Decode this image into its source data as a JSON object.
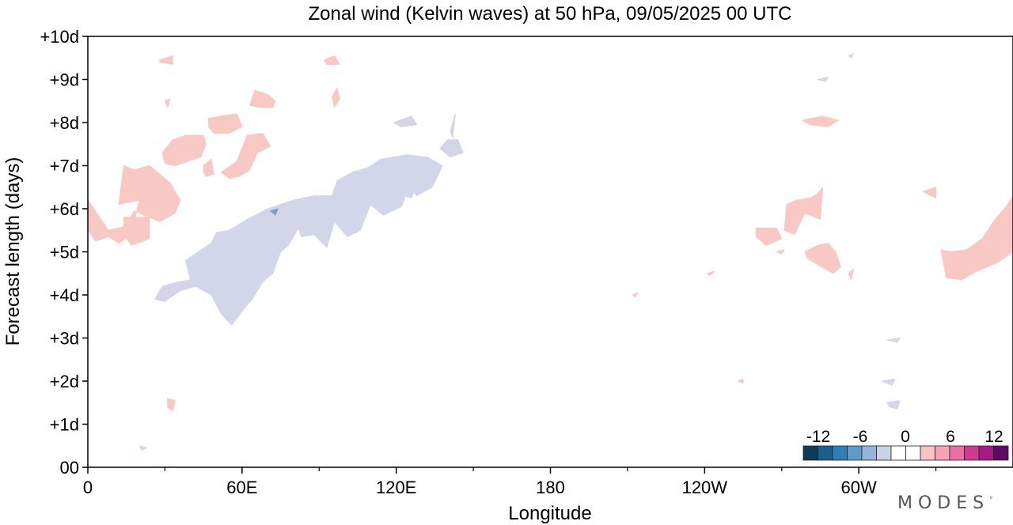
{
  "chart_data": {
    "type": "heatmap",
    "title": "Zonal wind (Kelvin waves) at 50 hPa,  09/05/2025  00 UTC",
    "xlabel": "Longitude",
    "ylabel": "Forecast length (days)",
    "x_axis": {
      "range": [
        0,
        360
      ],
      "tick_labels": [
        {
          "lon": 0,
          "label": "0"
        },
        {
          "lon": 60,
          "label": "60E"
        },
        {
          "lon": 120,
          "label": "120E"
        },
        {
          "lon": 180,
          "label": "180"
        },
        {
          "lon": 240,
          "label": "120W"
        },
        {
          "lon": 300,
          "label": "60W"
        }
      ],
      "minor_ticks": [
        30,
        90,
        150,
        210,
        270,
        330
      ]
    },
    "y_axis": {
      "range": [
        0,
        10
      ],
      "tick_labels": [
        {
          "day": 0,
          "label": "00"
        },
        {
          "day": 1,
          "label": "+1d"
        },
        {
          "day": 2,
          "label": "+2d"
        },
        {
          "day": 3,
          "label": "+3d"
        },
        {
          "day": 4,
          "label": "+4d"
        },
        {
          "day": 5,
          "label": "+5d"
        },
        {
          "day": 6,
          "label": "+6d"
        },
        {
          "day": 7,
          "label": "+7d"
        },
        {
          "day": 8,
          "label": "+8d"
        },
        {
          "day": 9,
          "label": "+9d"
        },
        {
          "day": 10,
          "label": "+10d"
        }
      ]
    },
    "colorbar": {
      "labels": [
        "-12",
        "-6",
        "0",
        "6",
        "12"
      ],
      "colors": [
        "#0f3d57",
        "#1b5f8c",
        "#2f7fb6",
        "#5c9bcb",
        "#98b4d8",
        "#cdd3e6",
        "#ffffff",
        "#ffffff",
        "#f8c3c0",
        "#f5a3b5",
        "#ea6fa3",
        "#d03b8f",
        "#a21a84",
        "#5c0a63"
      ]
    },
    "series": [
      {
        "value": 2,
        "color": "#f8c8c4",
        "regions": [
          [
            [
              0,
              5.5
            ],
            [
              3,
              5.25
            ],
            [
              8,
              5.35
            ],
            [
              12,
              5.2
            ],
            [
              17,
              5.4
            ],
            [
              20,
              6.2
            ],
            [
              12,
              6.1
            ],
            [
              14,
              7.0
            ],
            [
              18,
              6.9
            ],
            [
              24,
              7.0
            ],
            [
              28,
              6.8
            ],
            [
              32,
              6.6
            ],
            [
              36,
              6.2
            ],
            [
              34,
              5.9
            ],
            [
              28,
              5.7
            ],
            [
              22,
              5.85
            ],
            [
              18,
              5.95
            ],
            [
              15,
              5.6
            ],
            [
              12,
              5.55
            ],
            [
              8,
              5.5
            ],
            [
              0,
              6.2
            ]
          ],
          [
            [
              14,
              5.8
            ],
            [
              24,
              5.8
            ],
            [
              24,
              5.3
            ],
            [
              17,
              5.15
            ],
            [
              14,
              5.4
            ]
          ],
          [
            [
              29,
              7.3
            ],
            [
              33,
              7.6
            ],
            [
              38,
              7.7
            ],
            [
              45,
              7.7
            ],
            [
              46,
              7.5
            ],
            [
              44,
              7.2
            ],
            [
              39,
              7.1
            ],
            [
              34,
              7.0
            ],
            [
              30,
              7.05
            ]
          ],
          [
            [
              47,
              8.1
            ],
            [
              52,
              8.15
            ],
            [
              58,
              8.2
            ],
            [
              60,
              7.9
            ],
            [
              55,
              7.75
            ],
            [
              49,
              7.75
            ],
            [
              47,
              7.9
            ]
          ],
          [
            [
              45,
              7.0
            ],
            [
              48,
              7.15
            ],
            [
              49,
              6.8
            ],
            [
              46,
              6.75
            ],
            [
              45,
              6.85
            ]
          ],
          [
            [
              52,
              6.85
            ],
            [
              58,
              7.1
            ],
            [
              62,
              7.7
            ],
            [
              68,
              7.75
            ],
            [
              71,
              7.45
            ],
            [
              66,
              7.3
            ],
            [
              63,
              6.9
            ],
            [
              59,
              6.75
            ],
            [
              55,
              6.7
            ]
          ],
          [
            [
              63,
              8.4
            ],
            [
              65,
              8.75
            ],
            [
              70,
              8.65
            ],
            [
              73,
              8.5
            ],
            [
              72,
              8.35
            ],
            [
              67,
              8.35
            ]
          ],
          [
            [
              28,
              9.45
            ],
            [
              33,
              9.55
            ],
            [
              33,
              9.35
            ],
            [
              28,
              9.4
            ]
          ],
          [
            [
              92,
              9.45
            ],
            [
              96,
              9.55
            ],
            [
              98,
              9.35
            ],
            [
              93,
              9.35
            ]
          ],
          [
            [
              95,
              8.6
            ],
            [
              97,
              8.8
            ],
            [
              98,
              8.55
            ],
            [
              96,
              8.35
            ]
          ],
          [
            [
              30,
              8.5
            ],
            [
              32,
              8.55
            ],
            [
              31,
              8.35
            ]
          ],
          [
            [
              31,
              1.6
            ],
            [
              34,
              1.55
            ],
            [
              33,
              1.3
            ],
            [
              31,
              1.4
            ]
          ],
          [
            [
              20,
              0.5
            ],
            [
              23,
              0.45
            ],
            [
              21,
              0.4
            ]
          ],
          [
            [
              278,
              8.05
            ],
            [
              286,
              8.15
            ],
            [
              292,
              8.05
            ],
            [
              288,
              7.9
            ],
            [
              281,
              7.95
            ]
          ],
          [
            [
              271,
              5.5
            ],
            [
              272,
              6.1
            ],
            [
              276,
              6.2
            ],
            [
              281,
              6.25
            ],
            [
              284,
              6.35
            ],
            [
              286,
              6.5
            ],
            [
              285,
              5.75
            ],
            [
              279,
              5.9
            ],
            [
              275,
              5.4
            ]
          ],
          [
            [
              260,
              5.55
            ],
            [
              268,
              5.55
            ],
            [
              270,
              5.3
            ],
            [
              264,
              5.15
            ],
            [
              260,
              5.35
            ]
          ],
          [
            [
              279,
              5.0
            ],
            [
              284,
              5.15
            ],
            [
              288,
              5.2
            ],
            [
              291,
              5.0
            ],
            [
              293,
              4.65
            ],
            [
              290,
              4.5
            ],
            [
              284,
              4.7
            ],
            [
              280,
              4.85
            ]
          ],
          [
            [
              296,
              4.5
            ],
            [
              298,
              4.6
            ],
            [
              297,
              4.35
            ]
          ],
          [
            [
              325,
              6.4
            ],
            [
              330,
              6.5
            ],
            [
              330,
              6.25
            ]
          ],
          [
            [
              336,
              5.0
            ],
            [
              342,
              5.05
            ],
            [
              348,
              5.3
            ],
            [
              353,
              5.75
            ],
            [
              358,
              6.1
            ],
            [
              360,
              6.3
            ],
            [
              360,
              5.0
            ],
            [
              354,
              4.75
            ],
            [
              346,
              4.55
            ],
            [
              340,
              4.35
            ],
            [
              334,
              4.4
            ],
            [
              332,
              5.05
            ]
          ],
          [
            [
              212,
              4.0
            ],
            [
              214,
              4.05
            ],
            [
              213,
              3.95
            ]
          ],
          [
            [
              241,
              4.5
            ],
            [
              244,
              4.55
            ],
            [
              242,
              4.45
            ]
          ],
          [
            [
              253,
              2.0
            ],
            [
              255,
              2.05
            ],
            [
              255,
              1.95
            ]
          ],
          [
            [
              268,
              5.0
            ],
            [
              271,
              5.05
            ],
            [
              270,
              4.95
            ]
          ]
        ]
      },
      {
        "value": -2,
        "color": "#d3d6e8",
        "regions": [
          [
            [
              26,
              3.9
            ],
            [
              29,
              4.2
            ],
            [
              35,
              4.3
            ],
            [
              40,
              4.35
            ],
            [
              38,
              4.8
            ],
            [
              43,
              5.0
            ],
            [
              48,
              5.2
            ],
            [
              50,
              5.45
            ],
            [
              55,
              5.5
            ],
            [
              62,
              5.75
            ],
            [
              70,
              6.0
            ],
            [
              80,
              6.2
            ],
            [
              88,
              6.3
            ],
            [
              95,
              6.3
            ],
            [
              97,
              6.65
            ],
            [
              103,
              6.85
            ],
            [
              109,
              6.95
            ],
            [
              114,
              7.15
            ],
            [
              124,
              7.25
            ],
            [
              132,
              7.2
            ],
            [
              138,
              7.0
            ],
            [
              134,
              6.5
            ],
            [
              128,
              6.3
            ],
            [
              125,
              6.5
            ],
            [
              122,
              6.05
            ],
            [
              115,
              5.85
            ],
            [
              110,
              6.1
            ],
            [
              106,
              5.5
            ],
            [
              101,
              5.35
            ],
            [
              96,
              5.7
            ],
            [
              93,
              5.1
            ],
            [
              88,
              5.4
            ],
            [
              83,
              5.35
            ],
            [
              82,
              5.55
            ],
            [
              78,
              5.15
            ],
            [
              75,
              5.0
            ],
            [
              72,
              4.5
            ],
            [
              68,
              4.3
            ],
            [
              64,
              3.9
            ],
            [
              61,
              3.7
            ],
            [
              56,
              3.3
            ],
            [
              52,
              3.55
            ],
            [
              48,
              4.0
            ],
            [
              42,
              4.2
            ],
            [
              36,
              4.1
            ],
            [
              30,
              3.85
            ]
          ],
          [
            [
              114,
              6.4
            ],
            [
              120,
              6.8
            ],
            [
              124,
              6.85
            ],
            [
              128,
              6.6
            ],
            [
              126,
              6.25
            ],
            [
              120,
              6.35
            ]
          ],
          [
            [
              137,
              7.4
            ],
            [
              140,
              7.6
            ],
            [
              144,
              7.6
            ],
            [
              146,
              7.3
            ],
            [
              141,
              7.2
            ]
          ],
          [
            [
              119,
              8.0
            ],
            [
              126,
              8.15
            ],
            [
              128,
              7.95
            ],
            [
              122,
              7.9
            ]
          ],
          [
            [
              141,
              7.8
            ],
            [
              143,
              8.2
            ],
            [
              142,
              7.65
            ]
          ],
          [
            [
              311,
              2.95
            ],
            [
              316,
              3.0
            ],
            [
              315,
              2.9
            ]
          ],
          [
            [
              309,
              2.0
            ],
            [
              314,
              2.05
            ],
            [
              313,
              1.9
            ]
          ],
          [
            [
              311,
              1.5
            ],
            [
              316,
              1.55
            ],
            [
              315,
              1.35
            ],
            [
              312,
              1.4
            ]
          ],
          [
            [
              284,
              9.0
            ],
            [
              288,
              9.05
            ],
            [
              287,
              8.95
            ]
          ],
          [
            [
              296,
              9.55
            ],
            [
              298,
              9.6
            ],
            [
              297,
              9.5
            ]
          ]
        ]
      },
      {
        "value": -4,
        "color": "#7fa3cc",
        "regions": [
          [
            [
              71,
              5.95
            ],
            [
              74,
              6.0
            ],
            [
              73,
              5.85
            ]
          ]
        ]
      }
    ],
    "grid": false,
    "legend": "colorbar bottom-right"
  },
  "branding": {
    "text": "MODES",
    "mark": "°"
  }
}
